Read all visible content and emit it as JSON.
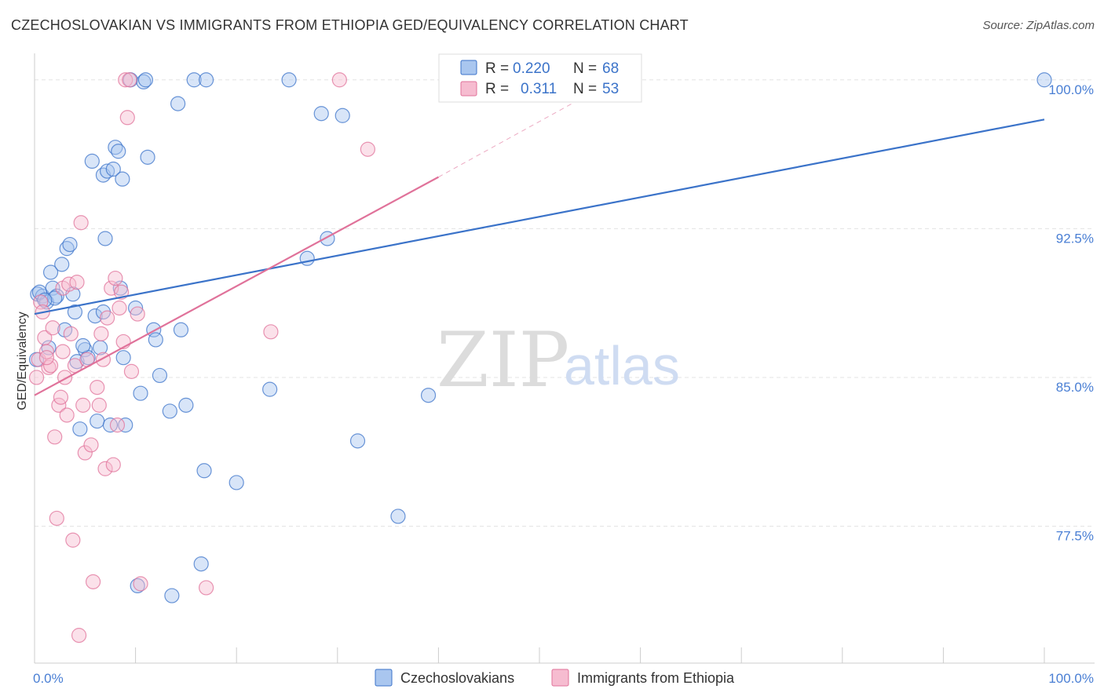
{
  "title": "CZECHOSLOVAKIAN VS IMMIGRANTS FROM ETHIOPIA GED/EQUIVALENCY CORRELATION CHART",
  "source": "Source: ZipAtlas.com",
  "watermark": {
    "zip": "ZIP",
    "atlas": "atlas"
  },
  "colors": {
    "blue": "#3b73c9",
    "blue_fill": "#a9c6ef",
    "pink": "#e0729a",
    "pink_fill": "#f6bcd0",
    "grid": "#e3e3e3"
  },
  "legend": {
    "r_label": "R =",
    "n_label": "N =",
    "rows": [
      {
        "r": "0.220",
        "n": "68"
      },
      {
        "r": "0.311",
        "n": "53"
      }
    ]
  },
  "chart_data": {
    "type": "scatter",
    "title": "CZECHOSLOVAKIAN VS IMMIGRANTS FROM ETHIOPIA GED/EQUIVALENCY CORRELATION CHART",
    "xlabel": "",
    "ylabel": "GED/Equivalency",
    "xlim": [
      0,
      100
    ],
    "ylim": [
      70.6,
      100.9
    ],
    "x_tick_labels": [
      "0.0%",
      "100.0%"
    ],
    "y_ticks": [
      77.5,
      85.0,
      92.5,
      100.0
    ],
    "y_tick_labels": [
      "77.5%",
      "85.0%",
      "92.5%",
      "100.0%"
    ],
    "grid": true,
    "legend_position": "top-center",
    "series": [
      {
        "name": "Czechoslovakians",
        "trend": {
          "x": [
            0,
            100
          ],
          "y": [
            88.2,
            98.0
          ]
        },
        "points": [
          [
            0.3,
            89.2
          ],
          [
            0.8,
            89.1
          ],
          [
            1.2,
            88.8
          ],
          [
            1.6,
            90.3
          ],
          [
            1.8,
            89.5
          ],
          [
            2.2,
            89.1
          ],
          [
            2.7,
            90.7
          ],
          [
            3.2,
            91.5
          ],
          [
            3.5,
            91.7
          ],
          [
            3.8,
            89.2
          ],
          [
            4.0,
            88.3
          ],
          [
            4.2,
            85.8
          ],
          [
            4.5,
            82.4
          ],
          [
            5.0,
            86.4
          ],
          [
            5.3,
            86.0
          ],
          [
            5.7,
            95.9
          ],
          [
            6.0,
            88.1
          ],
          [
            6.2,
            82.8
          ],
          [
            6.5,
            86.5
          ],
          [
            6.8,
            95.2
          ],
          [
            7.0,
            92.0
          ],
          [
            7.2,
            95.4
          ],
          [
            7.5,
            82.6
          ],
          [
            7.8,
            95.5
          ],
          [
            8.0,
            96.6
          ],
          [
            8.3,
            96.4
          ],
          [
            8.5,
            89.5
          ],
          [
            8.8,
            86.0
          ],
          [
            9.0,
            82.6
          ],
          [
            9.5,
            100.0
          ],
          [
            10.0,
            88.5
          ],
          [
            10.2,
            74.5
          ],
          [
            10.5,
            84.2
          ],
          [
            10.8,
            99.9
          ],
          [
            11.0,
            100.0
          ],
          [
            11.2,
            96.1
          ],
          [
            11.8,
            87.4
          ],
          [
            12.0,
            86.9
          ],
          [
            12.4,
            85.1
          ],
          [
            13.6,
            74.0
          ],
          [
            13.4,
            83.3
          ],
          [
            14.2,
            98.8
          ],
          [
            14.5,
            87.4
          ],
          [
            15.0,
            83.6
          ],
          [
            15.8,
            100.0
          ],
          [
            16.5,
            75.6
          ],
          [
            16.8,
            80.3
          ],
          [
            17.0,
            100.0
          ],
          [
            20.0,
            79.7
          ],
          [
            23.3,
            84.4
          ],
          [
            25.2,
            100.0
          ],
          [
            27.0,
            91.0
          ],
          [
            28.4,
            98.3
          ],
          [
            29.0,
            92.0
          ],
          [
            30.5,
            98.2
          ],
          [
            32.0,
            81.8
          ],
          [
            36.0,
            78.0
          ],
          [
            39.0,
            84.1
          ],
          [
            0.5,
            89.3
          ],
          [
            1.4,
            86.5
          ],
          [
            2.0,
            89.0
          ],
          [
            3.0,
            87.4
          ],
          [
            4.8,
            86.6
          ],
          [
            6.8,
            88.3
          ],
          [
            8.7,
            95.0
          ],
          [
            0.2,
            85.9
          ],
          [
            1.0,
            88.9
          ],
          [
            100.0,
            100.0
          ]
        ]
      },
      {
        "name": "Immigrants from Ethiopia",
        "trend": {
          "x": [
            0,
            40
          ],
          "y": [
            84.1,
            95.1
          ]
        },
        "trend_dashed": {
          "x": [
            40,
            55
          ],
          "y": [
            95.1,
            99.3
          ]
        },
        "points": [
          [
            0.2,
            85.0
          ],
          [
            0.4,
            85.9
          ],
          [
            0.6,
            88.8
          ],
          [
            0.8,
            88.3
          ],
          [
            1.0,
            87.0
          ],
          [
            1.2,
            86.3
          ],
          [
            1.4,
            85.5
          ],
          [
            1.6,
            85.6
          ],
          [
            1.8,
            87.5
          ],
          [
            2.0,
            82.0
          ],
          [
            2.2,
            77.9
          ],
          [
            2.4,
            83.6
          ],
          [
            2.6,
            84.0
          ],
          [
            2.8,
            89.5
          ],
          [
            3.0,
            85.0
          ],
          [
            3.2,
            83.1
          ],
          [
            3.4,
            89.7
          ],
          [
            3.6,
            87.2
          ],
          [
            3.8,
            76.8
          ],
          [
            4.0,
            85.6
          ],
          [
            4.2,
            89.8
          ],
          [
            4.4,
            72.0
          ],
          [
            4.6,
            92.8
          ],
          [
            4.8,
            83.6
          ],
          [
            5.0,
            81.2
          ],
          [
            5.2,
            85.9
          ],
          [
            5.6,
            81.6
          ],
          [
            5.8,
            74.7
          ],
          [
            6.2,
            84.5
          ],
          [
            6.4,
            83.6
          ],
          [
            6.6,
            87.2
          ],
          [
            6.8,
            85.9
          ],
          [
            7.0,
            80.4
          ],
          [
            7.2,
            88.0
          ],
          [
            7.6,
            89.5
          ],
          [
            7.8,
            80.6
          ],
          [
            8.0,
            90.0
          ],
          [
            8.2,
            82.6
          ],
          [
            8.4,
            88.5
          ],
          [
            8.6,
            89.3
          ],
          [
            8.8,
            86.8
          ],
          [
            9.0,
            100.0
          ],
          [
            9.2,
            98.1
          ],
          [
            9.4,
            100.0
          ],
          [
            9.6,
            85.3
          ],
          [
            10.2,
            88.2
          ],
          [
            10.5,
            74.6
          ],
          [
            17.0,
            74.4
          ],
          [
            23.4,
            87.3
          ],
          [
            30.2,
            100.0
          ],
          [
            33.0,
            96.5
          ],
          [
            1.2,
            86.0
          ],
          [
            2.8,
            86.3
          ]
        ]
      }
    ]
  },
  "bottom_legend": [
    "Czechoslovakians",
    "Immigrants from Ethiopia"
  ]
}
